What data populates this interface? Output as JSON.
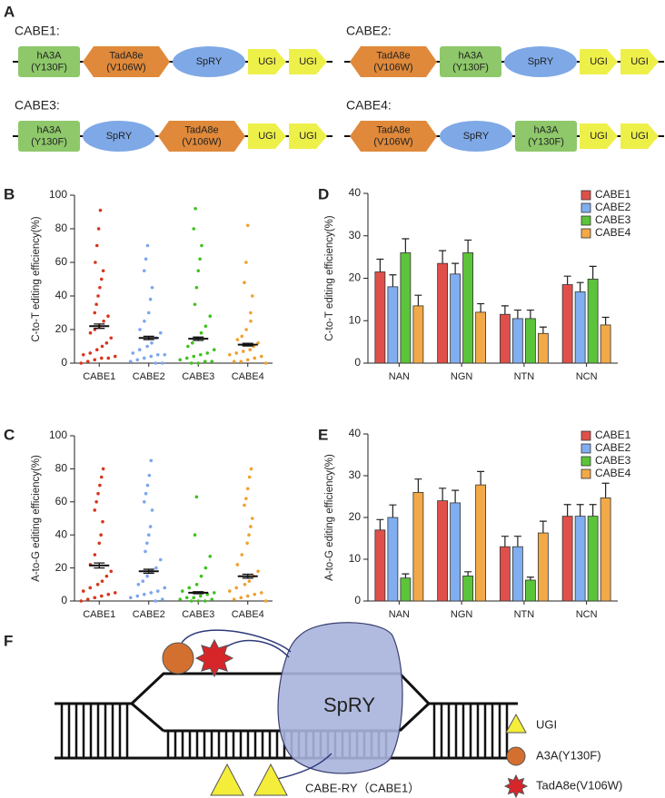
{
  "panel_labels": [
    "A",
    "B",
    "C",
    "D",
    "E",
    "F"
  ],
  "constructs": [
    {
      "name": "CABE1:",
      "parts": [
        {
          "lines": [
            "hA3A",
            "(Y130F)"
          ],
          "shape": "rect",
          "color": "#8ec86a"
        },
        {
          "lines": [
            "TadA8e",
            "(V106W)"
          ],
          "shape": "hexagon",
          "color": "#e0893a"
        },
        {
          "lines": [
            "SpRY"
          ],
          "shape": "ellipse",
          "color": "#7ea8e6"
        },
        {
          "lines": [
            "UGI"
          ],
          "shape": "arrow",
          "color": "#eef04a"
        },
        {
          "lines": [
            "UGI"
          ],
          "shape": "arrow",
          "color": "#eef04a"
        }
      ]
    },
    {
      "name": "CABE2:",
      "parts": [
        {
          "lines": [
            "TadA8e",
            "(V106W)"
          ],
          "shape": "hexagon",
          "color": "#e0893a"
        },
        {
          "lines": [
            "hA3A",
            "(Y130F)"
          ],
          "shape": "rect",
          "color": "#8ec86a"
        },
        {
          "lines": [
            "SpRY"
          ],
          "shape": "ellipse",
          "color": "#7ea8e6"
        },
        {
          "lines": [
            "UGI"
          ],
          "shape": "arrow",
          "color": "#eef04a"
        },
        {
          "lines": [
            "UGI"
          ],
          "shape": "arrow",
          "color": "#eef04a"
        }
      ]
    },
    {
      "name": "CABE3:",
      "parts": [
        {
          "lines": [
            "hA3A",
            "(Y130F)"
          ],
          "shape": "rect",
          "color": "#8ec86a"
        },
        {
          "lines": [
            "SpRY"
          ],
          "shape": "ellipse",
          "color": "#7ea8e6"
        },
        {
          "lines": [
            "TadA8e",
            "(V106W)"
          ],
          "shape": "hexagon",
          "color": "#e0893a"
        },
        {
          "lines": [
            "UGI"
          ],
          "shape": "arrow",
          "color": "#eef04a"
        },
        {
          "lines": [
            "UGI"
          ],
          "shape": "arrow",
          "color": "#eef04a"
        }
      ]
    },
    {
      "name": "CABE4:",
      "parts": [
        {
          "lines": [
            "TadA8e",
            "(V106W)"
          ],
          "shape": "hexagon",
          "color": "#e0893a"
        },
        {
          "lines": [
            "SpRY"
          ],
          "shape": "ellipse",
          "color": "#7ea8e6"
        },
        {
          "lines": [
            "hA3A",
            "(Y130F)"
          ],
          "shape": "rect",
          "color": "#8ec86a"
        },
        {
          "lines": [
            "UGI"
          ],
          "shape": "arrow",
          "color": "#eef04a"
        },
        {
          "lines": [
            "UGI"
          ],
          "shape": "arrow",
          "color": "#eef04a"
        }
      ]
    }
  ],
  "chart_data": [
    {
      "type": "strip",
      "y_label": "C-to-T editing efficiency(%)",
      "categories": [
        "CABE1",
        "CABE2",
        "CABE3",
        "CABE4"
      ],
      "colors": [
        "#d7361e",
        "#7aa6ef",
        "#3fc21c",
        "#f0a030"
      ],
      "points": [
        [
          0,
          1,
          2,
          3,
          3,
          4,
          5,
          6,
          8,
          10,
          12,
          15,
          18,
          20,
          22,
          25,
          28,
          30,
          35,
          40,
          45,
          50,
          55,
          60,
          70,
          80,
          91
        ],
        [
          0,
          0,
          1,
          2,
          3,
          4,
          5,
          5,
          6,
          8,
          10,
          12,
          15,
          18,
          20,
          25,
          30,
          38,
          45,
          55,
          62,
          70
        ],
        [
          0,
          0,
          1,
          1,
          2,
          3,
          4,
          5,
          6,
          8,
          10,
          12,
          15,
          18,
          22,
          28,
          35,
          45,
          55,
          62,
          70,
          80,
          92
        ],
        [
          0,
          1,
          1,
          2,
          3,
          4,
          5,
          6,
          7,
          8,
          10,
          12,
          14,
          16,
          20,
          25,
          30,
          40,
          48,
          60,
          82
        ]
      ],
      "means": [
        22,
        15,
        14.5,
        11
      ],
      "errors": [
        1.3,
        1,
        1,
        0.8
      ],
      "ylim": [
        0,
        100
      ],
      "yticks": [
        0,
        20,
        40,
        60,
        80,
        100
      ]
    },
    {
      "type": "strip",
      "y_label": "A-to-G editing efficiency(%)",
      "categories": [
        "CABE1",
        "CABE2",
        "CABE3",
        "CABE4"
      ],
      "colors": [
        "#d7361e",
        "#7aa6ef",
        "#3fc21c",
        "#f0a030"
      ],
      "points": [
        [
          0,
          1,
          2,
          3,
          4,
          5,
          6,
          8,
          10,
          12,
          15,
          18,
          22,
          28,
          35,
          40,
          48,
          55,
          60,
          65,
          70,
          75,
          80
        ],
        [
          0,
          1,
          2,
          3,
          4,
          5,
          6,
          8,
          10,
          12,
          15,
          18,
          20,
          25,
          30,
          35,
          40,
          45,
          55,
          60,
          65,
          70,
          76,
          85
        ],
        [
          0,
          0,
          0,
          1,
          1,
          2,
          2,
          3,
          4,
          5,
          6,
          8,
          10,
          15,
          20,
          27,
          40,
          63
        ],
        [
          0,
          1,
          2,
          3,
          4,
          5,
          6,
          8,
          10,
          12,
          15,
          18,
          22,
          28,
          35,
          40,
          45,
          50,
          58,
          62,
          68,
          75,
          80
        ]
      ],
      "means": [
        21.5,
        18,
        5,
        15
      ],
      "errors": [
        1.5,
        1.2,
        0.6,
        1.2
      ],
      "ylim": [
        0,
        100
      ],
      "yticks": [
        0,
        20,
        40,
        60,
        80,
        100
      ]
    },
    {
      "type": "bar",
      "y_label": "C-to-T editing efficiency(%)",
      "categories": [
        "NAN",
        "NGN",
        "NTN",
        "NCN"
      ],
      "legend": "upper right",
      "series": [
        {
          "name": "CABE1",
          "color": "#e0504a",
          "values": [
            21.5,
            23.5,
            11.5,
            18.5
          ],
          "errors": [
            3,
            3,
            2,
            2
          ]
        },
        {
          "name": "CABE2",
          "color": "#80aef0",
          "values": [
            18,
            21,
            10.5,
            16.8
          ],
          "errors": [
            2.8,
            2.5,
            2,
            2.2
          ]
        },
        {
          "name": "CABE3",
          "color": "#5cc43a",
          "values": [
            26,
            26,
            10.5,
            19.8
          ],
          "errors": [
            3.3,
            3,
            2,
            3
          ]
        },
        {
          "name": "CABE4",
          "color": "#f2a947",
          "values": [
            13.5,
            12,
            7,
            9
          ],
          "errors": [
            2.5,
            2,
            1.5,
            1.8
          ]
        }
      ],
      "ylim": [
        0,
        40
      ],
      "yticks": [
        0,
        10,
        20,
        30,
        40
      ]
    },
    {
      "type": "bar",
      "y_label": "A-to-G editing efficiency(%)",
      "categories": [
        "NAN",
        "NGN",
        "NTN",
        "NCN"
      ],
      "legend": "upper right",
      "series": [
        {
          "name": "CABE1",
          "color": "#e0504a",
          "values": [
            17,
            24,
            13,
            20.3
          ],
          "errors": [
            2.5,
            3,
            2.5,
            2.8
          ]
        },
        {
          "name": "CABE2",
          "color": "#80aef0",
          "values": [
            20,
            23.5,
            13,
            20.3
          ],
          "errors": [
            3,
            3,
            2.5,
            2.8
          ]
        },
        {
          "name": "CABE3",
          "color": "#5cc43a",
          "values": [
            5.5,
            6,
            5,
            20.3
          ],
          "errors": [
            1,
            1,
            0.7,
            2.8
          ]
        },
        {
          "name": "CABE4",
          "color": "#f2a947",
          "values": [
            26,
            27.8,
            16.3,
            24.7
          ],
          "errors": [
            3.2,
            3.2,
            2.8,
            3.5
          ]
        }
      ],
      "ylim": [
        0,
        40
      ],
      "yticks": [
        0,
        10,
        20,
        30,
        40
      ]
    }
  ],
  "diagram": {
    "protein": "SpRY",
    "legend": [
      "UGI",
      "A3A(Y130F)",
      "TadA8e(V106W)"
    ],
    "caption": "CABE-RY（CABE1）"
  }
}
